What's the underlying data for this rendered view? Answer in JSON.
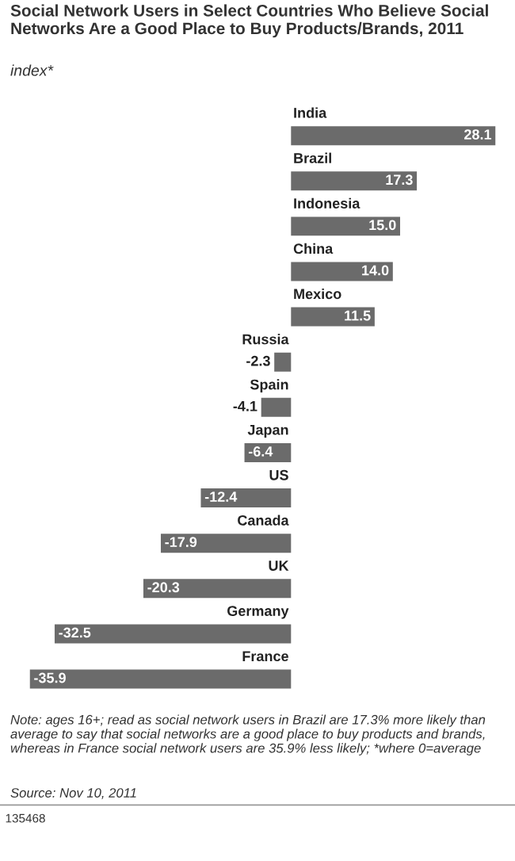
{
  "chart_data": {
    "type": "bar",
    "orientation": "horizontal",
    "title": "Social Network Users in Select Countries Who Believe Social Networks Are a Good Place to Buy Products/Brands, 2011",
    "subtitle": "index*",
    "categories": [
      "India",
      "Brazil",
      "Indonesia",
      "China",
      "Mexico",
      "Russia",
      "Spain",
      "Japan",
      "US",
      "Canada",
      "UK",
      "Germany",
      "France"
    ],
    "values": [
      28.1,
      17.3,
      15.0,
      14.0,
      11.5,
      -2.3,
      -4.1,
      -6.4,
      -12.4,
      -17.9,
      -20.3,
      -32.5,
      -35.9
    ],
    "value_labels": [
      "28.1",
      "17.3",
      "15.0",
      "14.0",
      "11.5",
      "-2.3",
      "-4.1",
      "-6.4",
      "-12.4",
      "-17.9",
      "-20.3",
      "-32.5",
      "-35.9"
    ],
    "color": "#6b6b6b",
    "legend": false,
    "tick_labels": false,
    "annotations": [
      "Note: ages 16+; read as social network users in Brazil are 17.3% more likely than average to say that social networks are a good place to buy products and brands, whereas in France social network users are 35.9% less likely; *where 0=average",
      "Source: Nov 10, 2011",
      "135468"
    ]
  }
}
